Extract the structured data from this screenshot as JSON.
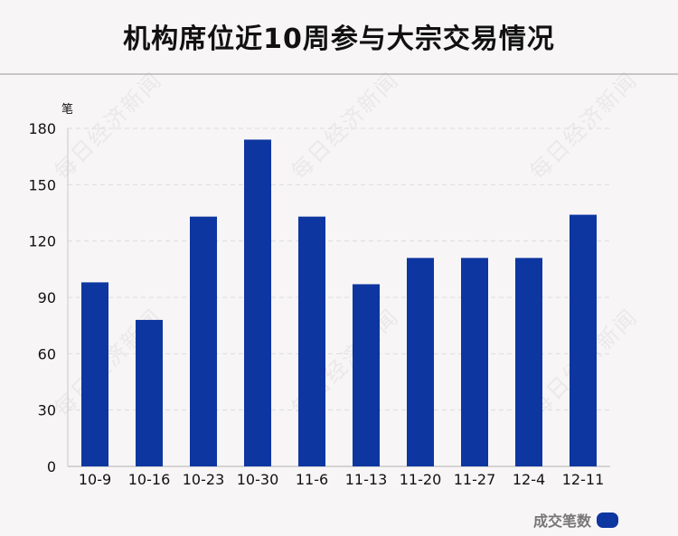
{
  "title": "机构席位近10周参与大宗交易情况",
  "watermark": "每日经济新闻",
  "colors": {
    "bar": "#0d36a0",
    "background": "#f8f5f6",
    "grid": "#dddddd",
    "axis": "#c8c8c8"
  },
  "legend": {
    "label": "成交笔数",
    "position": "bottom-right"
  },
  "chart_data": {
    "type": "bar",
    "title": "机构席位近10周参与大宗交易情况",
    "xlabel": "",
    "ylabel": "笔",
    "categories": [
      "10-9",
      "10-16",
      "10-23",
      "10-30",
      "11-6",
      "11-13",
      "11-20",
      "11-27",
      "12-4",
      "12-11"
    ],
    "series": [
      {
        "name": "成交笔数",
        "values": [
          98,
          78,
          133,
          174,
          133,
          97,
          111,
          111,
          111,
          134
        ]
      }
    ],
    "ylim": [
      0,
      180
    ],
    "yticks": [
      0,
      30,
      60,
      90,
      120,
      150,
      180
    ],
    "grid": true,
    "legend_position": "bottom-right"
  }
}
